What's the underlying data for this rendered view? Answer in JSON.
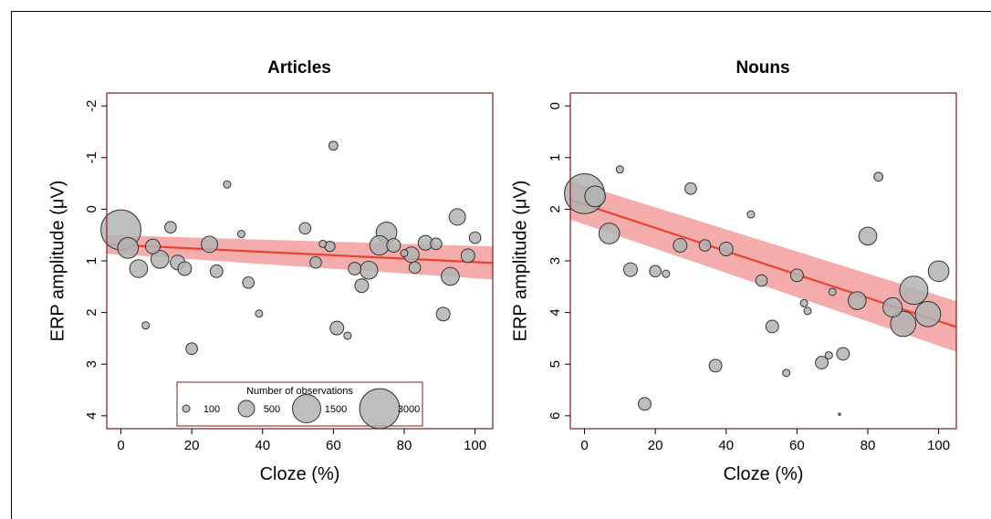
{
  "chart_data": [
    {
      "type": "scatter",
      "title": "Articles",
      "xlabel": "Cloze (%)",
      "ylabel": "ERP amplitude (μV)",
      "xlim": [
        -4,
        105
      ],
      "ylim": [
        4.25,
        -2.25
      ],
      "y_reversed": true,
      "xticks": [
        0,
        20,
        40,
        60,
        80,
        100
      ],
      "yticks": [
        -2,
        -1,
        0,
        1,
        2,
        3,
        4
      ],
      "fit_line": {
        "x": [
          -4,
          105
        ],
        "y": [
          0.68,
          1.04
        ]
      },
      "confidence_band": {
        "x": [
          -4,
          105
        ],
        "lower": [
          0.5,
          0.72
        ],
        "upper": [
          0.86,
          1.36
        ]
      },
      "points": [
        {
          "x": 0,
          "y": 0.4,
          "n": 3000
        },
        {
          "x": 2,
          "y": 0.75,
          "n": 800
        },
        {
          "x": 5,
          "y": 1.15,
          "n": 600
        },
        {
          "x": 7,
          "y": 2.25,
          "n": 100
        },
        {
          "x": 9,
          "y": 0.72,
          "n": 400
        },
        {
          "x": 11,
          "y": 0.97,
          "n": 600
        },
        {
          "x": 14,
          "y": 0.35,
          "n": 250
        },
        {
          "x": 16,
          "y": 1.03,
          "n": 400
        },
        {
          "x": 18,
          "y": 1.15,
          "n": 350
        },
        {
          "x": 20,
          "y": 2.7,
          "n": 250
        },
        {
          "x": 25,
          "y": 0.68,
          "n": 500
        },
        {
          "x": 27,
          "y": 1.2,
          "n": 300
        },
        {
          "x": 30,
          "y": -0.48,
          "n": 100
        },
        {
          "x": 34,
          "y": 0.48,
          "n": 100
        },
        {
          "x": 36,
          "y": 1.42,
          "n": 250
        },
        {
          "x": 39,
          "y": 2.02,
          "n": 100
        },
        {
          "x": 52,
          "y": 0.37,
          "n": 250
        },
        {
          "x": 55,
          "y": 1.03,
          "n": 250
        },
        {
          "x": 57,
          "y": 0.67,
          "n": 100
        },
        {
          "x": 59,
          "y": 0.72,
          "n": 200
        },
        {
          "x": 60,
          "y": -1.23,
          "n": 150
        },
        {
          "x": 61,
          "y": 2.3,
          "n": 350
        },
        {
          "x": 64,
          "y": 2.45,
          "n": 100
        },
        {
          "x": 66,
          "y": 1.15,
          "n": 300
        },
        {
          "x": 68,
          "y": 1.48,
          "n": 350
        },
        {
          "x": 70,
          "y": 1.18,
          "n": 600
        },
        {
          "x": 73,
          "y": 0.7,
          "n": 700
        },
        {
          "x": 75,
          "y": 0.45,
          "n": 800
        },
        {
          "x": 77,
          "y": 0.7,
          "n": 350
        },
        {
          "x": 80,
          "y": 0.85,
          "n": 100
        },
        {
          "x": 82,
          "y": 0.88,
          "n": 450
        },
        {
          "x": 83,
          "y": 1.13,
          "n": 250
        },
        {
          "x": 86,
          "y": 0.65,
          "n": 400
        },
        {
          "x": 89,
          "y": 0.67,
          "n": 250
        },
        {
          "x": 91,
          "y": 2.03,
          "n": 350
        },
        {
          "x": 93,
          "y": 1.3,
          "n": 600
        },
        {
          "x": 95,
          "y": 0.15,
          "n": 500
        },
        {
          "x": 98,
          "y": 0.9,
          "n": 350
        },
        {
          "x": 100,
          "y": 0.55,
          "n": 250
        }
      ],
      "legend": {
        "title": "Number of observations",
        "entries": [
          {
            "label": "100",
            "n": 100
          },
          {
            "label": "500",
            "n": 500
          },
          {
            "label": "1500",
            "n": 1500
          },
          {
            "label": "3000",
            "n": 3000
          }
        ],
        "placement": "bottom-center"
      }
    },
    {
      "type": "scatter",
      "title": "Nouns",
      "xlabel": "Cloze (%)",
      "ylabel": "ERP amplitude (μV)",
      "xlim": [
        -4,
        105
      ],
      "ylim": [
        6.25,
        -0.25
      ],
      "y_reversed": true,
      "xticks": [
        0,
        20,
        40,
        60,
        80,
        100
      ],
      "yticks": [
        0,
        1,
        2,
        3,
        4,
        5,
        6
      ],
      "fit_line": {
        "x": [
          -4,
          105
        ],
        "y": [
          1.82,
          4.28
        ]
      },
      "confidence_band": {
        "x": [
          -4,
          105
        ],
        "lower": [
          1.45,
          3.78
        ],
        "upper": [
          2.2,
          4.76
        ]
      },
      "points": [
        {
          "x": 0,
          "y": 1.7,
          "n": 3000
        },
        {
          "x": 3,
          "y": 1.75,
          "n": 800
        },
        {
          "x": 7,
          "y": 2.47,
          "n": 800
        },
        {
          "x": 10,
          "y": 1.23,
          "n": 100
        },
        {
          "x": 13,
          "y": 3.17,
          "n": 350
        },
        {
          "x": 17,
          "y": 5.77,
          "n": 300
        },
        {
          "x": 20,
          "y": 3.2,
          "n": 250
        },
        {
          "x": 23,
          "y": 3.25,
          "n": 100
        },
        {
          "x": 27,
          "y": 2.7,
          "n": 350
        },
        {
          "x": 30,
          "y": 1.6,
          "n": 250
        },
        {
          "x": 34,
          "y": 2.7,
          "n": 250
        },
        {
          "x": 37,
          "y": 5.03,
          "n": 300
        },
        {
          "x": 40,
          "y": 2.77,
          "n": 350
        },
        {
          "x": 47,
          "y": 2.1,
          "n": 100
        },
        {
          "x": 50,
          "y": 3.38,
          "n": 250
        },
        {
          "x": 53,
          "y": 4.27,
          "n": 300
        },
        {
          "x": 57,
          "y": 5.17,
          "n": 100
        },
        {
          "x": 60,
          "y": 3.28,
          "n": 300
        },
        {
          "x": 62,
          "y": 3.82,
          "n": 100
        },
        {
          "x": 63,
          "y": 3.97,
          "n": 100
        },
        {
          "x": 67,
          "y": 4.97,
          "n": 300
        },
        {
          "x": 69,
          "y": 4.83,
          "n": 100
        },
        {
          "x": 70,
          "y": 3.6,
          "n": 100
        },
        {
          "x": 72,
          "y": 5.97,
          "n": 10
        },
        {
          "x": 73,
          "y": 4.8,
          "n": 300
        },
        {
          "x": 77,
          "y": 3.77,
          "n": 600
        },
        {
          "x": 80,
          "y": 2.52,
          "n": 600
        },
        {
          "x": 83,
          "y": 1.37,
          "n": 150
        },
        {
          "x": 87,
          "y": 3.9,
          "n": 700
        },
        {
          "x": 90,
          "y": 4.22,
          "n": 1200
        },
        {
          "x": 93,
          "y": 3.57,
          "n": 1500
        },
        {
          "x": 97,
          "y": 4.03,
          "n": 1200
        },
        {
          "x": 100,
          "y": 3.2,
          "n": 800
        }
      ]
    }
  ]
}
